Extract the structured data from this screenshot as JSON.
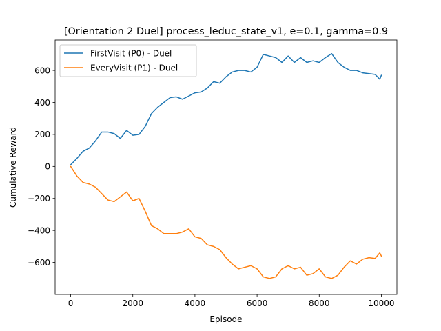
{
  "chart_data": {
    "type": "line",
    "title": "[Orientation 2 Duel] process_leduc_state_v1, e=0.1, gamma=0.9",
    "xlabel": "Episode",
    "ylabel": "Cumulative Reward",
    "xlim": [
      -500,
      10500
    ],
    "ylim": [
      -800,
      790
    ],
    "xticks": [
      0,
      2000,
      4000,
      6000,
      8000,
      10000
    ],
    "yticks": [
      -600,
      -400,
      -200,
      0,
      200,
      400,
      600
    ],
    "ytick_labels": [
      "−600",
      "−400",
      "−200",
      "0",
      "200",
      "400",
      "600"
    ],
    "legend_position": "upper left",
    "grid": false,
    "series": [
      {
        "name": "FirstVisit (P0) - Duel",
        "color": "#1f77b4",
        "x": [
          0,
          200,
          400,
          600,
          800,
          1000,
          1200,
          1400,
          1600,
          1800,
          2000,
          2200,
          2400,
          2600,
          2800,
          3000,
          3200,
          3400,
          3600,
          3800,
          4000,
          4200,
          4400,
          4600,
          4800,
          5000,
          5200,
          5400,
          5600,
          5800,
          6000,
          6200,
          6400,
          6600,
          6800,
          7000,
          7200,
          7400,
          7600,
          7800,
          8000,
          8200,
          8400,
          8600,
          8800,
          9000,
          9200,
          9400,
          9600,
          9800,
          9950,
          10000
        ],
        "y": [
          10,
          50,
          95,
          115,
          160,
          215,
          215,
          205,
          175,
          225,
          195,
          200,
          250,
          330,
          370,
          400,
          430,
          435,
          420,
          440,
          460,
          465,
          490,
          530,
          520,
          560,
          590,
          600,
          600,
          590,
          620,
          700,
          690,
          680,
          650,
          690,
          650,
          680,
          650,
          660,
          650,
          680,
          705,
          650,
          620,
          600,
          600,
          585,
          580,
          575,
          545,
          570
        ]
      },
      {
        "name": "EveryVisit (P1) - Duel",
        "color": "#ff7f0e",
        "x": [
          0,
          200,
          400,
          600,
          800,
          1000,
          1200,
          1400,
          1600,
          1800,
          2000,
          2200,
          2400,
          2600,
          2800,
          3000,
          3200,
          3400,
          3600,
          3800,
          4000,
          4200,
          4400,
          4600,
          4800,
          5000,
          5200,
          5400,
          5600,
          5800,
          6000,
          6200,
          6400,
          6600,
          6800,
          7000,
          7200,
          7400,
          7600,
          7800,
          8000,
          8200,
          8400,
          8600,
          8800,
          9000,
          9200,
          9400,
          9600,
          9800,
          9950,
          10000
        ],
        "y": [
          0,
          -60,
          -100,
          -110,
          -130,
          -170,
          -210,
          -220,
          -190,
          -160,
          -215,
          -200,
          -280,
          -370,
          -390,
          -420,
          -420,
          -420,
          -410,
          -390,
          -440,
          -450,
          -490,
          -500,
          -520,
          -570,
          -610,
          -640,
          -630,
          -620,
          -640,
          -690,
          -700,
          -690,
          -640,
          -620,
          -640,
          -630,
          -680,
          -670,
          -640,
          -690,
          -700,
          -680,
          -630,
          -590,
          -610,
          -580,
          -570,
          -575,
          -540,
          -560
        ]
      }
    ]
  }
}
